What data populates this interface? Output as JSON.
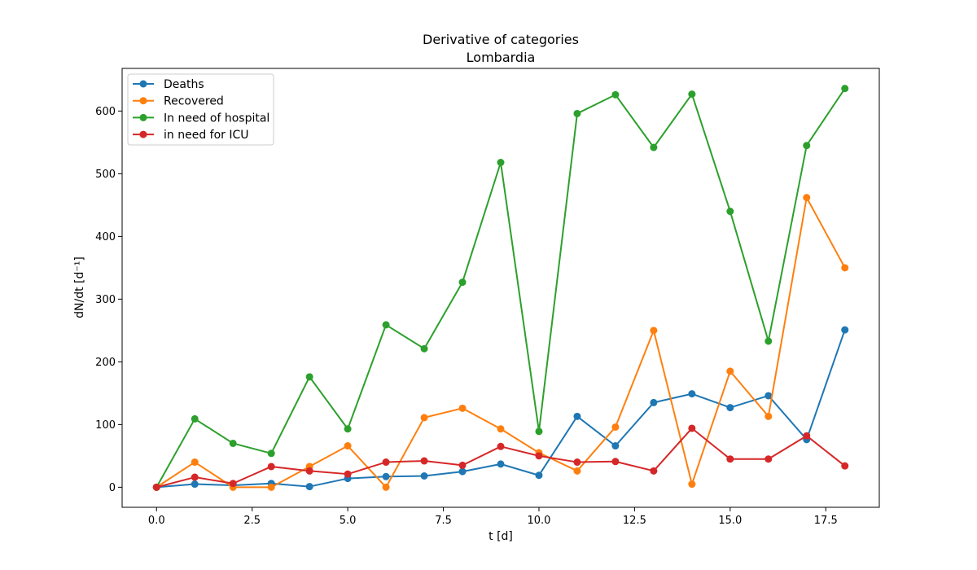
{
  "chart_data": {
    "type": "line",
    "title": "Derivative of categories",
    "subtitle": "Lombardia",
    "xlabel": "t [d]",
    "ylabel": "dN/dt [d⁻¹]",
    "xlim": [
      -0.9,
      18.9
    ],
    "ylim": [
      -32,
      668
    ],
    "xticks": [
      0.0,
      2.5,
      5.0,
      7.5,
      10.0,
      12.5,
      15.0,
      17.5
    ],
    "xtick_labels": [
      "0.0",
      "2.5",
      "5.0",
      "7.5",
      "10.0",
      "12.5",
      "15.0",
      "17.5"
    ],
    "yticks": [
      0,
      100,
      200,
      300,
      400,
      500,
      600
    ],
    "ytick_labels": [
      "0",
      "100",
      "200",
      "300",
      "400",
      "500",
      "600"
    ],
    "grid": false,
    "legend_position": "top-left",
    "x": [
      0,
      1,
      2,
      3,
      4,
      5,
      6,
      7,
      8,
      9,
      10,
      11,
      12,
      13,
      14,
      15,
      16,
      17,
      18
    ],
    "series": [
      {
        "name": "Deaths",
        "color": "#1f77b4",
        "values": [
          0,
          5,
          3,
          6,
          1,
          14,
          17,
          18,
          25,
          37,
          19,
          113,
          66,
          135,
          149,
          127,
          146,
          76,
          251
        ]
      },
      {
        "name": "Recovered",
        "color": "#ff7f0e",
        "values": [
          0,
          40,
          0,
          0,
          33,
          66,
          0,
          111,
          126,
          93,
          55,
          26,
          96,
          250,
          5,
          185,
          113,
          462,
          350
        ]
      },
      {
        "name": "In need of hospital",
        "color": "#2ca02c",
        "values": [
          0,
          109,
          70,
          54,
          176,
          93,
          259,
          221,
          327,
          518,
          89,
          596,
          626,
          542,
          627,
          440,
          233,
          545,
          636
        ]
      },
      {
        "name": "in need for ICU",
        "color": "#d62728",
        "values": [
          0,
          16,
          6,
          33,
          26,
          21,
          40,
          42,
          35,
          65,
          50,
          40,
          41,
          26,
          94,
          45,
          45,
          82,
          34
        ]
      }
    ]
  }
}
